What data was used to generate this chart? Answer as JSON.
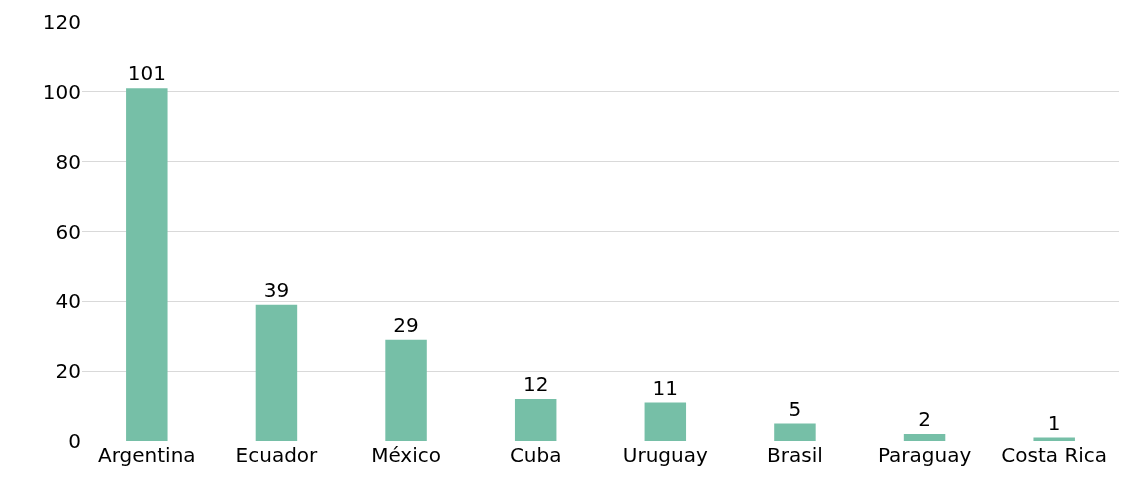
{
  "chart_data": {
    "type": "bar",
    "categories": [
      "Argentina",
      "Ecuador",
      "México",
      "Cuba",
      "Uruguay",
      "Brasil",
      "Paraguay",
      "Costa Rica"
    ],
    "values": [
      101,
      39,
      29,
      12,
      11,
      5,
      2,
      1
    ],
    "color": "#76bfa7",
    "ylim": [
      0,
      120
    ],
    "yticks": [
      0,
      20,
      40,
      60,
      80,
      100,
      120
    ],
    "grid": "y",
    "data_labels": true,
    "legend": false
  }
}
